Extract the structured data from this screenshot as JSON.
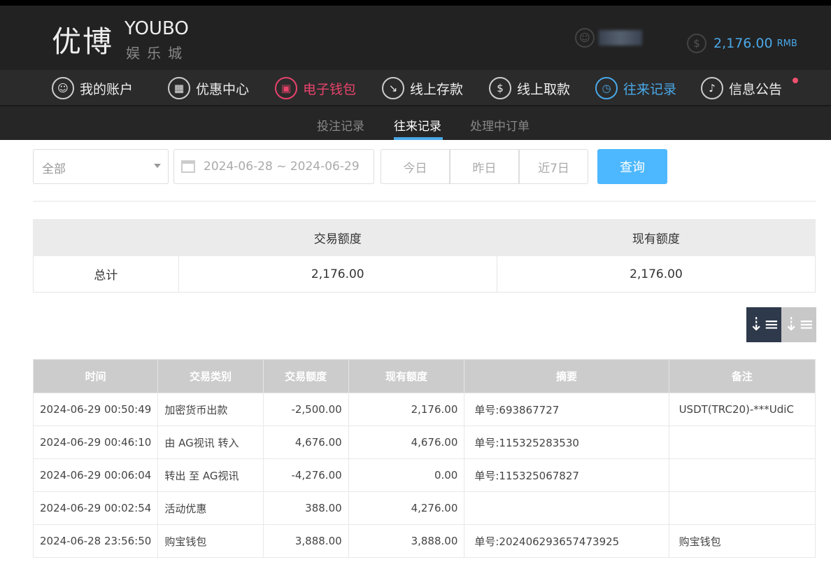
{
  "header": {
    "logo_cn": "优博",
    "logo_en": "YOUBO",
    "logo_sub": "娱乐城",
    "balance": "2,176.00",
    "currency": "RMB",
    "user_icon": "user-icon",
    "balance_icon": "dollar-icon"
  },
  "nav": [
    {
      "label": "我的账户",
      "icon": "user-icon",
      "glyph": "☺"
    },
    {
      "label": "优惠中心",
      "icon": "gift-icon",
      "glyph": "▦"
    },
    {
      "label": "电子钱包",
      "icon": "wallet-icon",
      "glyph": "▣",
      "color": "#e8436b"
    },
    {
      "label": "线上存款",
      "icon": "deposit-icon",
      "glyph": "↘"
    },
    {
      "label": "线上取款",
      "icon": "withdraw-icon",
      "glyph": "$"
    },
    {
      "label": "往来记录",
      "icon": "records-icon",
      "glyph": "◷",
      "color": "#4aa8e8"
    },
    {
      "label": "信息公告",
      "icon": "bell-icon",
      "glyph": "♪"
    }
  ],
  "subnav": [
    "投注记录",
    "往来记录",
    "处理中订单"
  ],
  "filters": {
    "type": "全部",
    "date_range": "2024-06-28 ~ 2024-06-29",
    "quick": [
      "今日",
      "昨日",
      "近7日"
    ],
    "search": "查询"
  },
  "summary": {
    "headers": [
      "",
      "交易额度",
      "现有额度"
    ],
    "label": "总计",
    "trade": "2,176.00",
    "current": "2,176.00"
  },
  "table": {
    "headers": [
      "时间",
      "交易类别",
      "交易额度",
      "现有额度",
      "摘要",
      "备注"
    ],
    "rows": [
      [
        "2024-06-29 00:50:49",
        "加密货币出款",
        "-2,500.00",
        "2,176.00",
        "单号:693867727",
        "USDT(TRC20)-***UdiC"
      ],
      [
        "2024-06-29 00:46:10",
        "由 AG视讯 转入",
        "4,676.00",
        "4,676.00",
        "单号:115325283530",
        ""
      ],
      [
        "2024-06-29 00:06:04",
        "转出 至 AG视讯",
        "-4,276.00",
        "0.00",
        "单号:115325067827",
        ""
      ],
      [
        "2024-06-29 00:02:54",
        "活动优惠",
        "388.00",
        "4,276.00",
        "",
        ""
      ],
      [
        "2024-06-28 23:56:50",
        "购宝钱包",
        "3,888.00",
        "3,888.00",
        "单号:202406293657473925",
        "购宝钱包"
      ]
    ]
  },
  "colors": {
    "accent": "#4aa8e8",
    "active_nav": "#e8436b",
    "search_button": "#4db8ff"
  }
}
